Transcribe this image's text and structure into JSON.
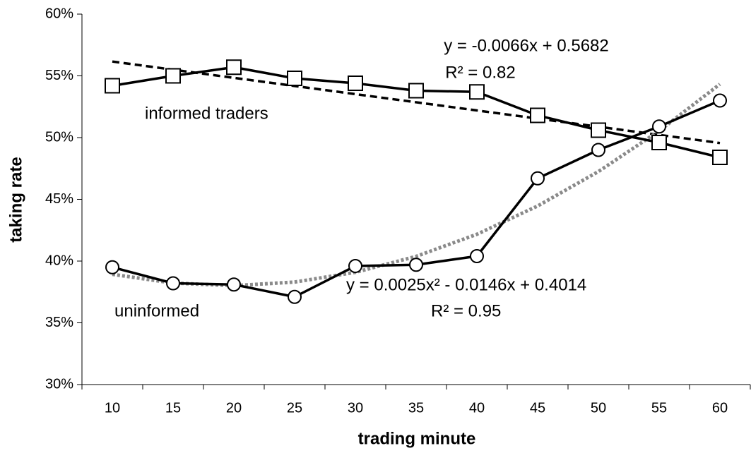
{
  "chart_data": {
    "type": "line",
    "xlabel": "trading minute",
    "ylabel": "taking rate",
    "categories": [
      "10",
      "15",
      "20",
      "25",
      "30",
      "35",
      "40",
      "45",
      "50",
      "55",
      "60"
    ],
    "series": [
      {
        "name": "informed traders",
        "color": "#000000",
        "marker": "square",
        "values": [
          54.2,
          55.0,
          55.7,
          54.8,
          54.4,
          53.8,
          53.7,
          51.8,
          50.6,
          49.6,
          48.4
        ]
      },
      {
        "name": "uninformed",
        "color": "#000000",
        "marker": "circle",
        "values": [
          39.5,
          38.2,
          38.1,
          37.1,
          39.6,
          39.7,
          40.4,
          46.7,
          49.0,
          50.9,
          53.0
        ]
      }
    ],
    "trendlines": [
      {
        "equation": "y = -0.0066x + 0.5682",
        "r2": "R² = 0.82",
        "color": "#000000",
        "values": [
          56.16,
          55.5,
          54.84,
          54.18,
          53.52,
          52.86,
          52.2,
          51.54,
          50.88,
          50.22,
          49.56
        ]
      },
      {
        "equation": "y = 0.0025x² - 0.0146x + 0.4014",
        "r2": "R² = 0.95",
        "color": "#8a8a8a",
        "values": [
          38.93,
          38.22,
          38.01,
          38.3,
          39.09,
          40.38,
          42.17,
          44.46,
          47.25,
          50.54,
          54.33
        ]
      }
    ],
    "ylim": [
      30,
      60
    ],
    "yticks": [
      {
        "value": 30,
        "label": "30%"
      },
      {
        "value": 35,
        "label": "35%"
      },
      {
        "value": 40,
        "label": "40%"
      },
      {
        "value": 45,
        "label": "45%"
      },
      {
        "value": 50,
        "label": "50%"
      },
      {
        "value": 55,
        "label": "55%"
      },
      {
        "value": 60,
        "label": "60%"
      }
    ],
    "grid": false
  }
}
